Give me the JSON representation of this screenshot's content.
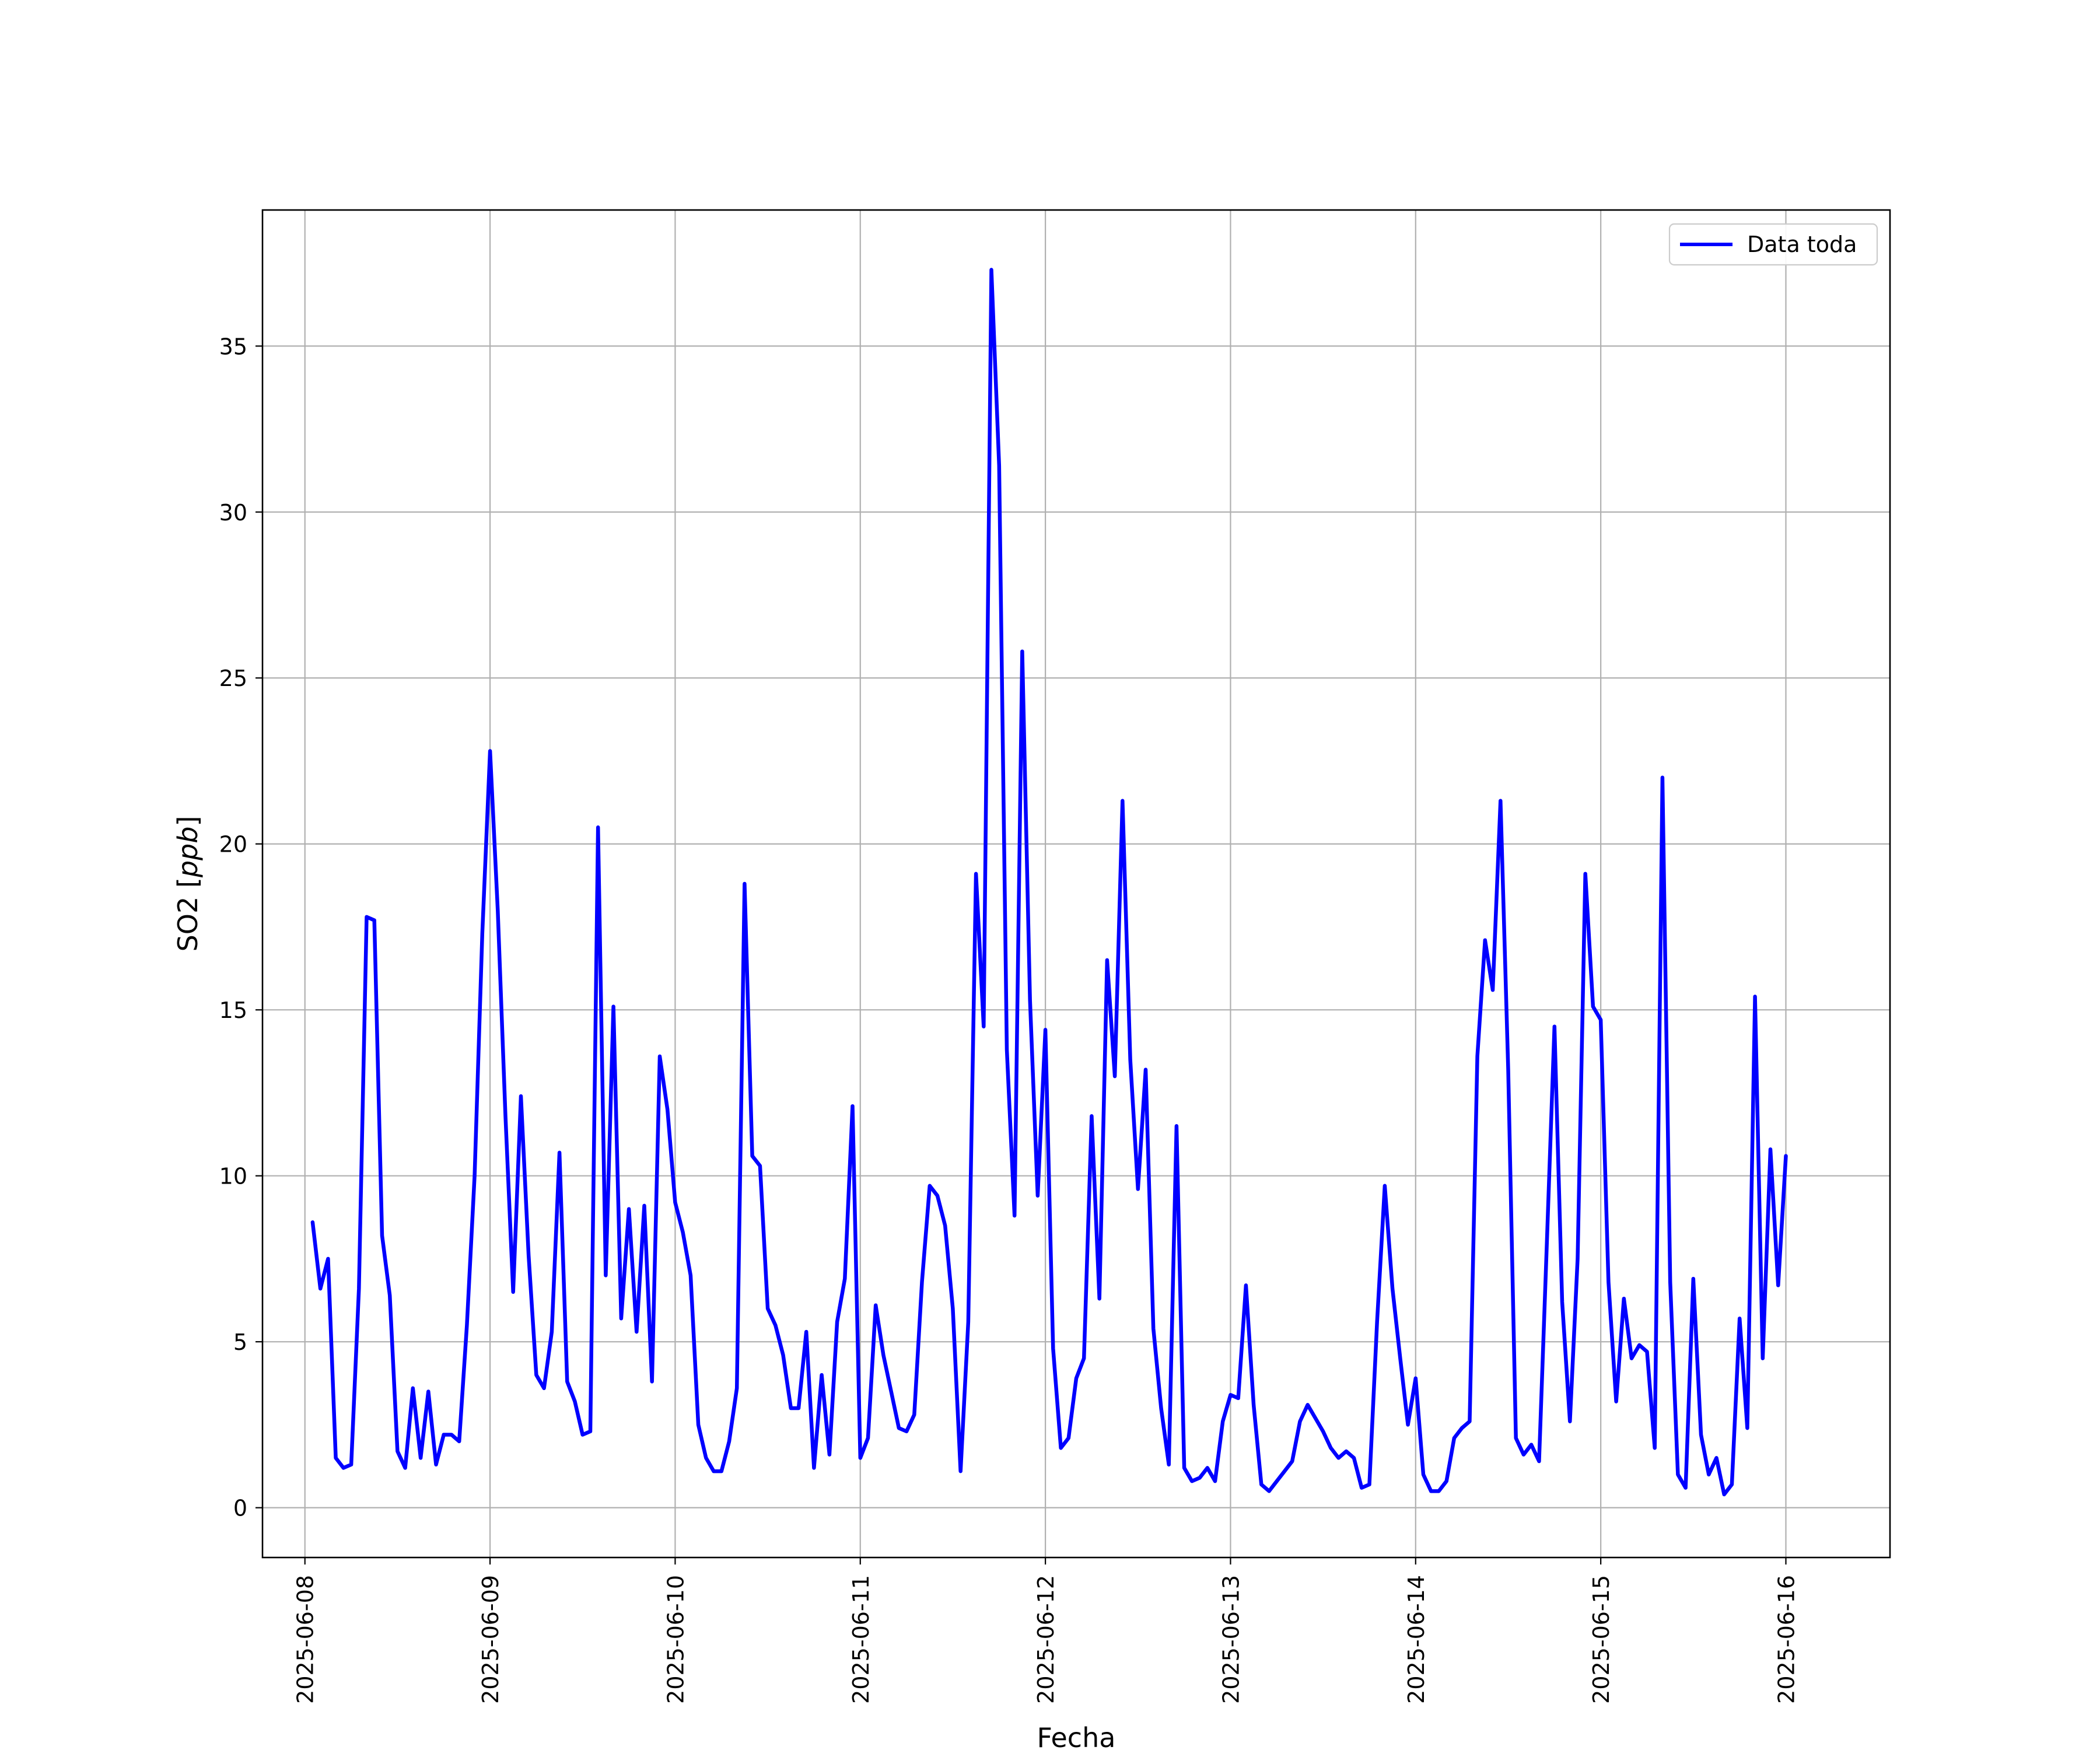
{
  "chart_data": {
    "type": "line",
    "xlabel": "Fecha",
    "ylabel": "SO2 [ppb]",
    "ylabel_parts": {
      "main": "SO2 [",
      "unit": "ppb",
      "close": "]"
    },
    "x_ticks": [
      "2025-06-08",
      "2025-06-09",
      "2025-06-10",
      "2025-06-11",
      "2025-06-12",
      "2025-06-13",
      "2025-06-14",
      "2025-06-15",
      "2025-06-16"
    ],
    "y_ticks": [
      0,
      5,
      10,
      15,
      20,
      25,
      30,
      35
    ],
    "xlim": [
      "2025-06-07 18:30",
      "2025-06-16 13:30"
    ],
    "ylim": [
      -1.5,
      39.1
    ],
    "grid": true,
    "legend_position": "top-right",
    "series": [
      {
        "name": "Data toda",
        "color": "#0000ff",
        "x": [
          "2025-06-08 01:00",
          "2025-06-08 02:00",
          "2025-06-08 03:00",
          "2025-06-08 04:00",
          "2025-06-08 05:00",
          "2025-06-08 06:00",
          "2025-06-08 07:00",
          "2025-06-08 08:00",
          "2025-06-08 09:00",
          "2025-06-08 10:00",
          "2025-06-08 11:00",
          "2025-06-08 12:00",
          "2025-06-08 13:00",
          "2025-06-08 14:00",
          "2025-06-08 15:00",
          "2025-06-08 16:00",
          "2025-06-08 17:00",
          "2025-06-08 18:00",
          "2025-06-08 19:00",
          "2025-06-08 20:00",
          "2025-06-08 21:00",
          "2025-06-08 22:00",
          "2025-06-08 23:00",
          "2025-06-09 00:00",
          "2025-06-09 01:00",
          "2025-06-09 02:00",
          "2025-06-09 03:00",
          "2025-06-09 04:00",
          "2025-06-09 05:00",
          "2025-06-09 06:00",
          "2025-06-09 07:00",
          "2025-06-09 08:00",
          "2025-06-09 09:00",
          "2025-06-09 10:00",
          "2025-06-09 11:00",
          "2025-06-09 12:00",
          "2025-06-09 13:00",
          "2025-06-09 14:00",
          "2025-06-09 15:00",
          "2025-06-09 16:00",
          "2025-06-09 17:00",
          "2025-06-09 18:00",
          "2025-06-09 19:00",
          "2025-06-09 20:00",
          "2025-06-09 21:00",
          "2025-06-09 22:00",
          "2025-06-09 23:00",
          "2025-06-10 00:00",
          "2025-06-10 01:00",
          "2025-06-10 02:00",
          "2025-06-10 03:00",
          "2025-06-10 04:00",
          "2025-06-10 05:00",
          "2025-06-10 06:00",
          "2025-06-10 07:00",
          "2025-06-10 08:00",
          "2025-06-10 09:00",
          "2025-06-10 10:00",
          "2025-06-10 11:00",
          "2025-06-10 12:00",
          "2025-06-10 13:00",
          "2025-06-10 14:00",
          "2025-06-10 15:00",
          "2025-06-10 16:00",
          "2025-06-10 17:00",
          "2025-06-10 18:00",
          "2025-06-10 19:00",
          "2025-06-10 20:00",
          "2025-06-10 21:00",
          "2025-06-10 22:00",
          "2025-06-10 23:00",
          "2025-06-11 00:00",
          "2025-06-11 01:00",
          "2025-06-11 02:00",
          "2025-06-11 03:00",
          "2025-06-11 04:00",
          "2025-06-11 05:00",
          "2025-06-11 06:00",
          "2025-06-11 07:00",
          "2025-06-11 08:00",
          "2025-06-11 09:00",
          "2025-06-11 10:00",
          "2025-06-11 11:00",
          "2025-06-11 12:00",
          "2025-06-11 13:00",
          "2025-06-11 14:00",
          "2025-06-11 15:00",
          "2025-06-11 16:00",
          "2025-06-11 17:00",
          "2025-06-11 18:00",
          "2025-06-11 19:00",
          "2025-06-11 20:00",
          "2025-06-11 21:00",
          "2025-06-11 22:00",
          "2025-06-11 23:00",
          "2025-06-12 00:00",
          "2025-06-12 01:00",
          "2025-06-12 02:00",
          "2025-06-12 03:00",
          "2025-06-12 04:00",
          "2025-06-12 05:00",
          "2025-06-12 06:00",
          "2025-06-12 07:00",
          "2025-06-12 08:00",
          "2025-06-12 09:00",
          "2025-06-12 10:00",
          "2025-06-12 11:00",
          "2025-06-12 12:00",
          "2025-06-12 13:00",
          "2025-06-12 14:00",
          "2025-06-12 15:00",
          "2025-06-12 16:00",
          "2025-06-12 17:00",
          "2025-06-12 18:00",
          "2025-06-12 19:00",
          "2025-06-12 20:00",
          "2025-06-12 21:00",
          "2025-06-12 22:00",
          "2025-06-12 23:00",
          "2025-06-13 00:00",
          "2025-06-13 01:00",
          "2025-06-13 02:00",
          "2025-06-13 03:00",
          "2025-06-13 04:00",
          "2025-06-13 05:00",
          "2025-06-13 06:00",
          "2025-06-13 07:00",
          "2025-06-13 08:00",
          "2025-06-13 09:00",
          "2025-06-13 10:00",
          "2025-06-13 11:00",
          "2025-06-13 12:00",
          "2025-06-13 13:00",
          "2025-06-13 14:00",
          "2025-06-13 15:00",
          "2025-06-13 16:00",
          "2025-06-13 17:00",
          "2025-06-13 18:00",
          "2025-06-13 19:00",
          "2025-06-13 20:00",
          "2025-06-13 21:00",
          "2025-06-13 22:00",
          "2025-06-13 23:00",
          "2025-06-14 00:00",
          "2025-06-14 01:00",
          "2025-06-14 02:00",
          "2025-06-14 03:00",
          "2025-06-14 04:00",
          "2025-06-14 05:00",
          "2025-06-14 06:00",
          "2025-06-14 07:00",
          "2025-06-14 08:00",
          "2025-06-14 09:00",
          "2025-06-14 10:00",
          "2025-06-14 11:00",
          "2025-06-14 12:00",
          "2025-06-14 13:00",
          "2025-06-14 14:00",
          "2025-06-14 15:00",
          "2025-06-14 16:00",
          "2025-06-14 17:00",
          "2025-06-14 18:00",
          "2025-06-14 19:00",
          "2025-06-14 20:00",
          "2025-06-14 21:00",
          "2025-06-14 22:00",
          "2025-06-14 23:00",
          "2025-06-15 00:00",
          "2025-06-15 01:00",
          "2025-06-15 02:00",
          "2025-06-15 03:00",
          "2025-06-15 04:00",
          "2025-06-15 05:00",
          "2025-06-15 06:00",
          "2025-06-15 07:00",
          "2025-06-15 08:00",
          "2025-06-15 09:00",
          "2025-06-15 10:00",
          "2025-06-15 11:00",
          "2025-06-15 12:00",
          "2025-06-15 13:00",
          "2025-06-15 14:00",
          "2025-06-15 15:00",
          "2025-06-15 16:00",
          "2025-06-15 17:00",
          "2025-06-15 18:00",
          "2025-06-15 19:00",
          "2025-06-15 20:00",
          "2025-06-15 21:00",
          "2025-06-15 22:00",
          "2025-06-15 23:00",
          "2025-06-16 00:00"
        ],
        "y": [
          8.6,
          6.6,
          7.5,
          1.5,
          1.2,
          1.3,
          6.6,
          17.8,
          17.7,
          8.2,
          6.4,
          1.7,
          1.2,
          3.6,
          1.5,
          3.5,
          1.3,
          2.2,
          2.2,
          2.0,
          5.5,
          10.0,
          17.3,
          22.8,
          18.0,
          11.8,
          6.5,
          12.4,
          7.6,
          4.0,
          3.6,
          5.3,
          10.7,
          3.8,
          3.2,
          2.2,
          2.3,
          20.5,
          7.0,
          15.1,
          5.7,
          9.0,
          5.3,
          9.1,
          3.8,
          13.6,
          12.0,
          9.2,
          8.3,
          7.0,
          2.5,
          1.5,
          1.1,
          1.1,
          2.0,
          3.6,
          18.8,
          10.6,
          10.3,
          6.0,
          5.5,
          4.6,
          3.0,
          3.0,
          5.3,
          1.2,
          4.0,
          1.6,
          5.6,
          6.9,
          12.1,
          1.5,
          2.1,
          6.1,
          4.6,
          3.5,
          2.4,
          2.3,
          2.8,
          6.8,
          9.7,
          9.4,
          8.5,
          6.0,
          1.1,
          5.6,
          19.1,
          14.5,
          37.3,
          31.4,
          13.8,
          8.8,
          25.8,
          15.3,
          9.4,
          14.4,
          4.8,
          1.8,
          2.1,
          3.9,
          4.5,
          11.8,
          6.3,
          16.5,
          13.0,
          21.3,
          13.5,
          9.6,
          13.2,
          5.4,
          3.0,
          1.3,
          11.5,
          1.2,
          0.8,
          0.9,
          1.2,
          0.8,
          2.6,
          3.4,
          3.3,
          6.7,
          3.1,
          0.7,
          0.5,
          0.8,
          1.1,
          1.4,
          2.6,
          3.1,
          2.7,
          2.3,
          1.8,
          1.5,
          1.7,
          1.5,
          0.6,
          0.7,
          5.6,
          9.7,
          6.6,
          4.5,
          2.5,
          3.9,
          1.0,
          0.5,
          0.5,
          0.8,
          2.1,
          2.4,
          2.6,
          13.6,
          17.1,
          15.6,
          21.3,
          13.2,
          2.1,
          1.6,
          1.9,
          1.4,
          7.9,
          14.5,
          6.2,
          2.6,
          7.5,
          19.1,
          15.1,
          14.7,
          6.8,
          3.2,
          6.3,
          4.5,
          4.9,
          4.7,
          1.8,
          22.0,
          6.8,
          1.0,
          0.6,
          6.9,
          2.2,
          1.0,
          1.5,
          0.4,
          0.7,
          5.7,
          2.4,
          15.4,
          4.5,
          10.8,
          6.7,
          10.6
        ]
      }
    ]
  }
}
